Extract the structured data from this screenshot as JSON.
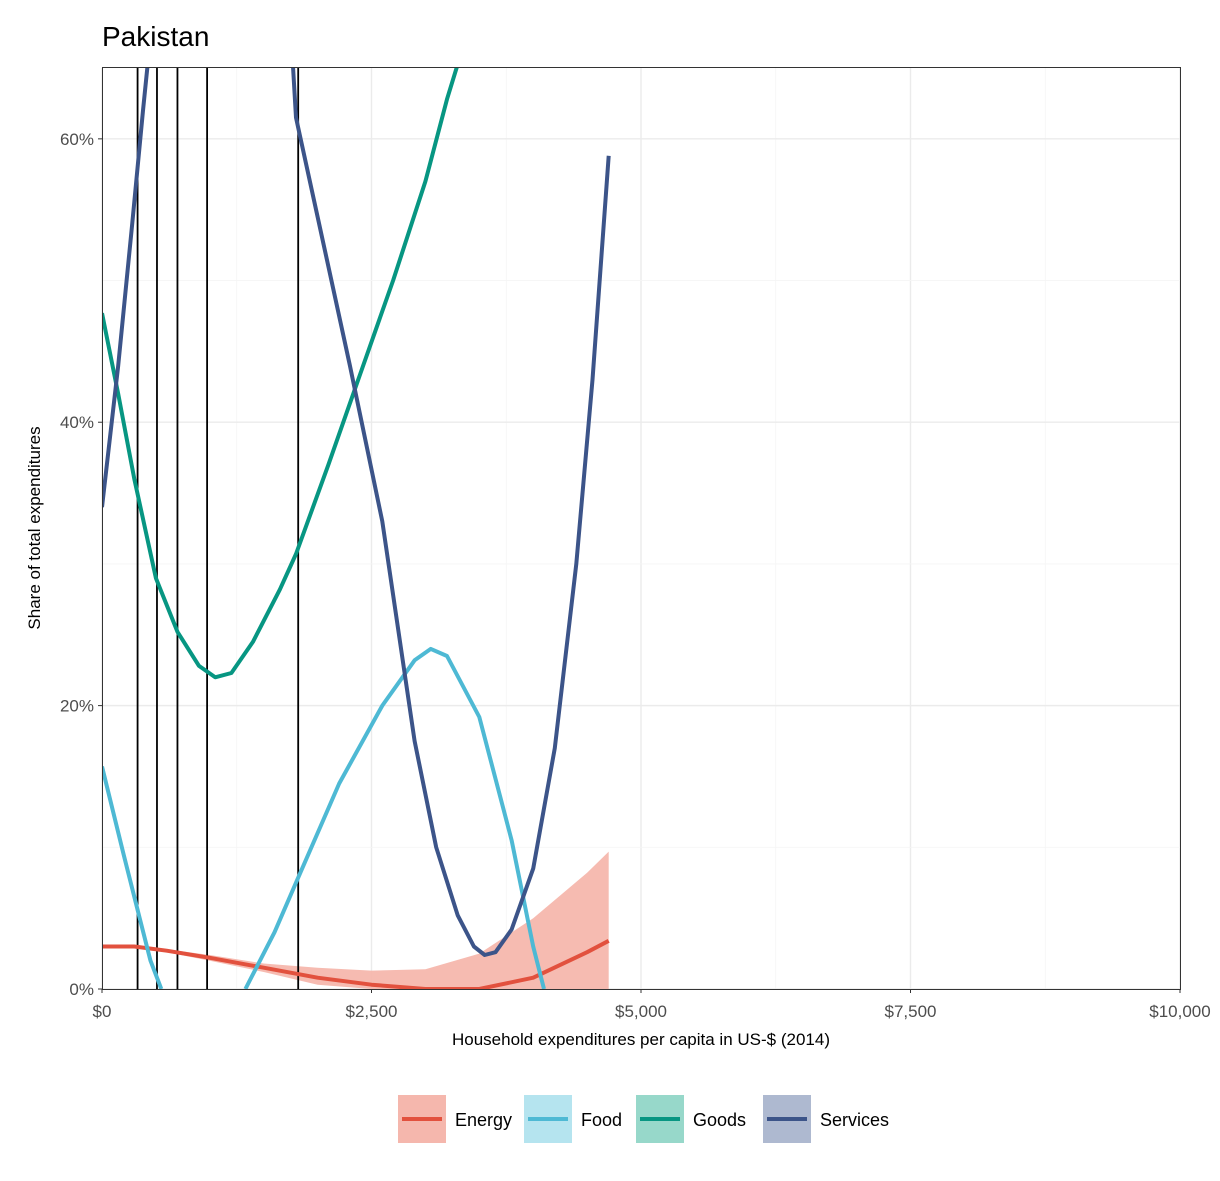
{
  "chart_data": {
    "type": "line",
    "title": "Pakistan",
    "xlabel": "Household expenditures per capita in US-$ (2014)",
    "ylabel": "Share of total expenditures",
    "xlim": [
      0,
      10000
    ],
    "ylim": [
      0,
      0.65
    ],
    "x_ticks": [
      {
        "value": 0,
        "label": "$0"
      },
      {
        "value": 2500,
        "label": "$2,500"
      },
      {
        "value": 5000,
        "label": "$5,000"
      },
      {
        "value": 7500,
        "label": "$7,500"
      },
      {
        "value": 10000,
        "label": "$10,000"
      }
    ],
    "y_ticks": [
      {
        "value": 0,
        "label": "0%"
      },
      {
        "value": 0.2,
        "label": "20%"
      },
      {
        "value": 0.4,
        "label": "40%"
      },
      {
        "value": 0.6,
        "label": "60%"
      }
    ],
    "vertical_lines": [
      330,
      510,
      700,
      975,
      1820
    ],
    "series": [
      {
        "name": "Energy",
        "color": "#e2513e",
        "fill": "#f5b7ad",
        "points": [
          [
            0,
            0.03
          ],
          [
            300,
            0.03
          ],
          [
            600,
            0.027
          ],
          [
            1000,
            0.022
          ],
          [
            1500,
            0.015
          ],
          [
            2000,
            0.008
          ],
          [
            2500,
            0.003
          ],
          [
            3000,
            0.0
          ],
          [
            3500,
            0.0
          ],
          [
            4000,
            0.008
          ],
          [
            4500,
            0.026
          ],
          [
            4700,
            0.034
          ]
        ],
        "ribbon_upper": [
          [
            0,
            0.031
          ],
          [
            300,
            0.031
          ],
          [
            600,
            0.028
          ],
          [
            1000,
            0.024
          ],
          [
            1500,
            0.018
          ],
          [
            2000,
            0.015
          ],
          [
            2500,
            0.013
          ],
          [
            3000,
            0.014
          ],
          [
            3500,
            0.025
          ],
          [
            4000,
            0.05
          ],
          [
            4500,
            0.082
          ],
          [
            4700,
            0.097
          ]
        ],
        "ribbon_lower": [
          [
            0,
            0.029
          ],
          [
            300,
            0.029
          ],
          [
            600,
            0.026
          ],
          [
            1000,
            0.02
          ],
          [
            1500,
            0.012
          ],
          [
            2000,
            0.003
          ],
          [
            2500,
            0.0
          ],
          [
            3000,
            0.0
          ],
          [
            3500,
            0.0
          ],
          [
            4000,
            0.0
          ],
          [
            4500,
            0.0
          ],
          [
            4700,
            0.0
          ]
        ]
      },
      {
        "name": "Food",
        "color": "#4eb9d4",
        "fill": "#b5e4ef",
        "points": [
          [
            0,
            0.157
          ],
          [
            200,
            0.095
          ],
          [
            350,
            0.05
          ],
          [
            450,
            0.02
          ],
          [
            550,
            0.0
          ],
          [
            null,
            null
          ],
          [
            1330,
            0.0
          ],
          [
            1600,
            0.04
          ],
          [
            1800,
            0.075
          ],
          [
            2200,
            0.145
          ],
          [
            2600,
            0.2
          ],
          [
            2900,
            0.232
          ],
          [
            3050,
            0.24
          ],
          [
            3200,
            0.235
          ],
          [
            3500,
            0.192
          ],
          [
            3800,
            0.105
          ],
          [
            4000,
            0.03
          ],
          [
            4100,
            0.0
          ]
        ]
      },
      {
        "name": "Goods",
        "color": "#079682",
        "fill": "#97d8ca",
        "points": [
          [
            0,
            0.477
          ],
          [
            150,
            0.42
          ],
          [
            300,
            0.36
          ],
          [
            500,
            0.29
          ],
          [
            700,
            0.252
          ],
          [
            900,
            0.228
          ],
          [
            1050,
            0.22
          ],
          [
            1200,
            0.223
          ],
          [
            1400,
            0.245
          ],
          [
            1650,
            0.282
          ],
          [
            1800,
            0.307
          ],
          [
            2100,
            0.37
          ],
          [
            2400,
            0.435
          ],
          [
            2700,
            0.5
          ],
          [
            3000,
            0.57
          ],
          [
            3200,
            0.628
          ],
          [
            3350,
            0.665
          ]
        ]
      },
      {
        "name": "Services",
        "color": "#3c5489",
        "fill": "#aeb9d0",
        "points": [
          [
            0,
            0.34
          ],
          [
            150,
            0.44
          ],
          [
            280,
            0.54
          ],
          [
            380,
            0.62
          ],
          [
            460,
            0.68
          ],
          [
            null,
            null
          ],
          [
            1750,
            0.68
          ],
          [
            1800,
            0.615
          ],
          [
            2000,
            0.545
          ],
          [
            2300,
            0.44
          ],
          [
            2600,
            0.33
          ],
          [
            2900,
            0.175
          ],
          [
            3100,
            0.1
          ],
          [
            3300,
            0.052
          ],
          [
            3450,
            0.03
          ],
          [
            3550,
            0.024
          ],
          [
            3650,
            0.026
          ],
          [
            3800,
            0.042
          ],
          [
            4000,
            0.085
          ],
          [
            4200,
            0.17
          ],
          [
            4400,
            0.3
          ],
          [
            4550,
            0.43
          ],
          [
            4700,
            0.588
          ]
        ]
      }
    ],
    "legend": [
      "Energy",
      "Food",
      "Goods",
      "Services"
    ],
    "legend_position": "bottom"
  }
}
